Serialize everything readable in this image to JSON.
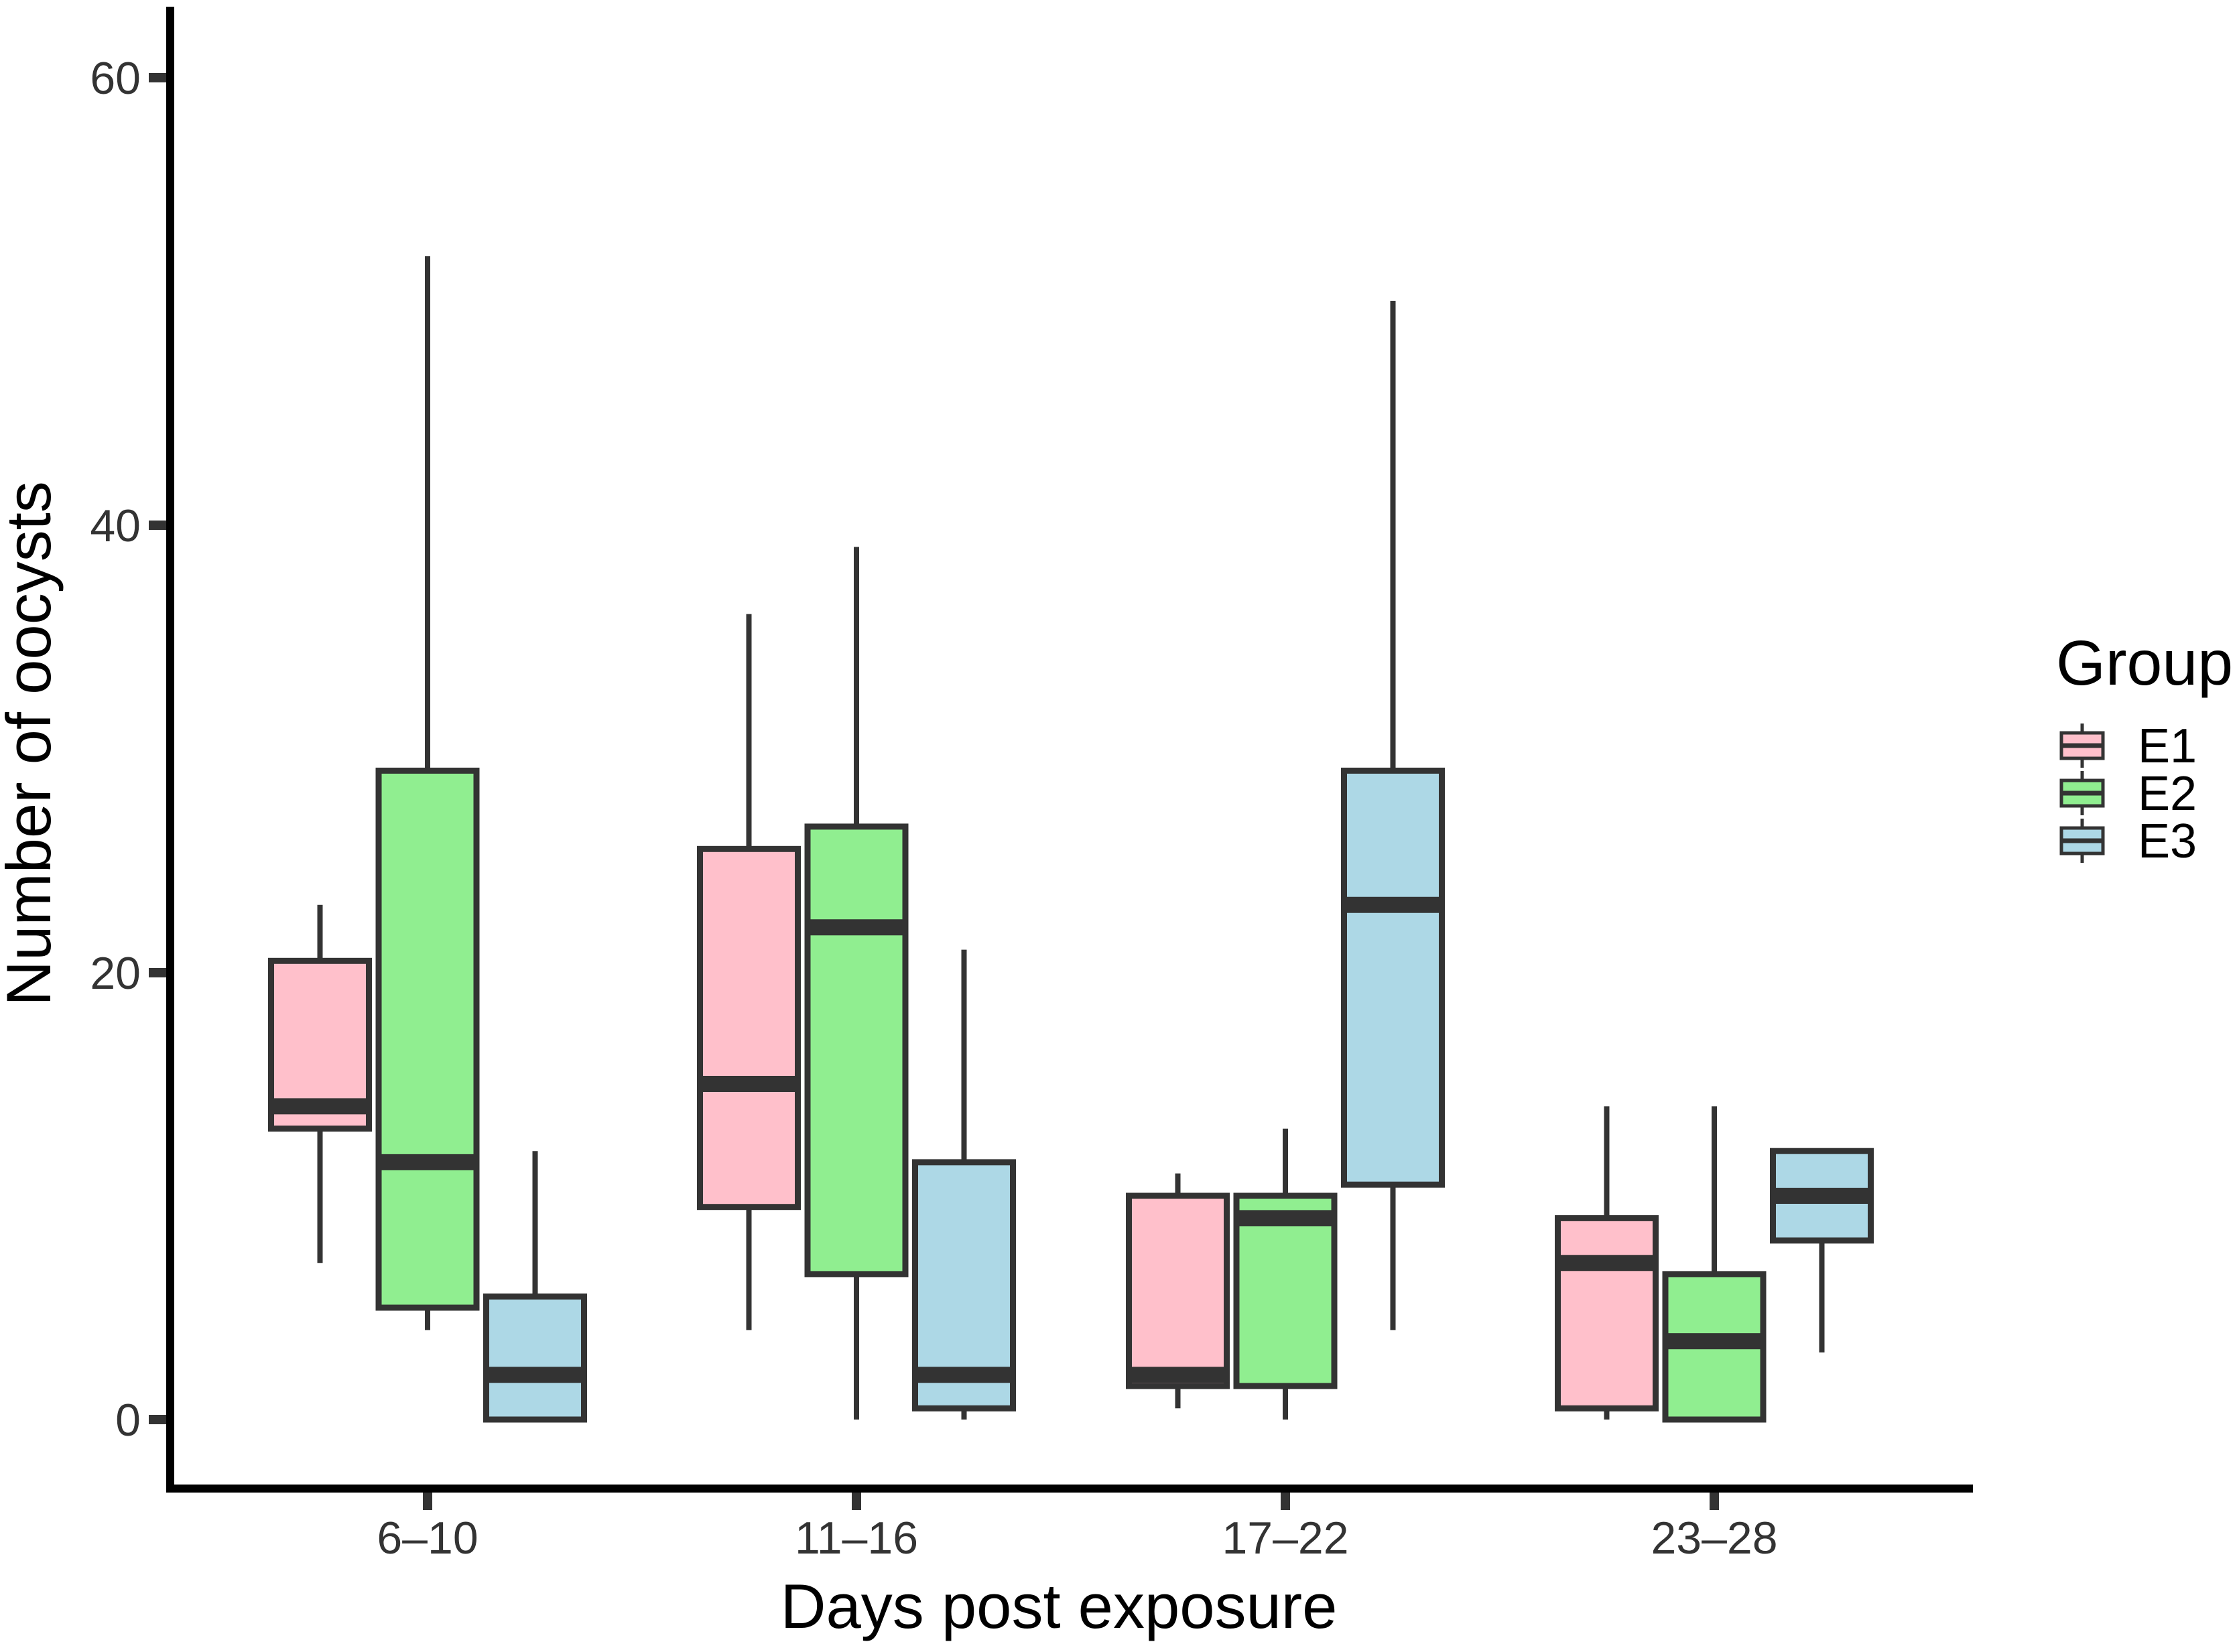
{
  "chart_data": {
    "type": "boxplot",
    "title": "",
    "xlabel": "Days post exposure",
    "ylabel": "Number of oocysts",
    "categories": [
      "6–10",
      "11–16",
      "17–22",
      "23–28"
    ],
    "y_ticks": [
      "0",
      "20",
      "40",
      "60"
    ],
    "y_tick_values": [
      0,
      20,
      40,
      60
    ],
    "ylim": [
      -3,
      63
    ],
    "grid": "off",
    "legend": {
      "title": "Group",
      "position": "right",
      "entries": [
        {
          "label": "E1",
          "color": "#FFC0CB"
        },
        {
          "label": "E2",
          "color": "#90EE90"
        },
        {
          "label": "E3",
          "color": "#ADD8E6"
        }
      ]
    },
    "series": [
      {
        "name": "E1",
        "fill": "#FFC0CB",
        "boxes": [
          {
            "category": "6–10",
            "min": 7,
            "q1": 13,
            "median": 14,
            "q3": 20.5,
            "max": 23
          },
          {
            "category": "11–16",
            "min": 4,
            "q1": 9.5,
            "median": 15,
            "q3": 25.5,
            "max": 36
          },
          {
            "category": "17–22",
            "min": 0.5,
            "q1": 1.5,
            "median": 2,
            "q3": 10,
            "max": 11
          },
          {
            "category": "23–28",
            "min": 0,
            "q1": 0.5,
            "median": 7,
            "q3": 9,
            "max": 14
          }
        ]
      },
      {
        "name": "E2",
        "fill": "#90EE90",
        "boxes": [
          {
            "category": "6–10",
            "min": 4,
            "q1": 5,
            "median": 11.5,
            "q3": 29,
            "max": 52
          },
          {
            "category": "11–16",
            "min": 0,
            "q1": 6.5,
            "median": 22,
            "q3": 26.5,
            "max": 39
          },
          {
            "category": "17–22",
            "min": 0,
            "q1": 1.5,
            "median": 9,
            "q3": 10,
            "max": 13
          },
          {
            "category": "23–28",
            "min": 0,
            "q1": 0,
            "median": 3.5,
            "q3": 6.5,
            "max": 14
          }
        ]
      },
      {
        "name": "E3",
        "fill": "#ADD8E6",
        "boxes": [
          {
            "category": "6–10",
            "min": 0,
            "q1": 0,
            "median": 2,
            "q3": 5.5,
            "max": 12
          },
          {
            "category": "11–16",
            "min": 0,
            "q1": 0.5,
            "median": 2,
            "q3": 11.5,
            "max": 21
          },
          {
            "category": "17–22",
            "min": 4,
            "q1": 10.5,
            "median": 23,
            "q3": 29,
            "max": 50
          },
          {
            "category": "23–28",
            "min": 3,
            "q1": 8,
            "median": 10,
            "q3": 12,
            "max": 12
          }
        ]
      }
    ],
    "colors": {
      "box_border": "#333333",
      "median": "#333333",
      "whisker": "#333333",
      "axis": "#000000",
      "tick_mark": "#333333",
      "tick_label": "#333333",
      "axis_title": "#000000"
    }
  }
}
